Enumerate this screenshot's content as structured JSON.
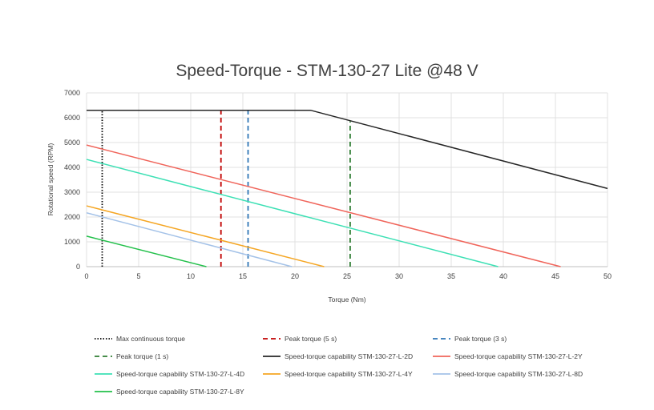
{
  "chart_data": {
    "type": "line",
    "title": "Speed-Torque - STM-130-27 Lite @48 V",
    "xlabel": "Torque (Nm)",
    "ylabel": "Rotational speed (RPM)",
    "xlim": [
      0,
      50
    ],
    "ylim": [
      0,
      7000
    ],
    "xticks": [
      0,
      5,
      10,
      15,
      20,
      25,
      30,
      35,
      40,
      45,
      50
    ],
    "yticks": [
      0,
      1000,
      2000,
      3000,
      4000,
      5000,
      6000,
      7000
    ],
    "grid": true,
    "legend_position": "bottom",
    "series": [
      {
        "name": "Max continuous torque",
        "kind": "vertical",
        "dash": "dotted",
        "color": "#000000",
        "x": [
          1.5,
          1.5
        ],
        "y": [
          0,
          6300
        ]
      },
      {
        "name": "Peak torque (5 s)",
        "kind": "vertical",
        "dash": "dashed",
        "color": "#c00000",
        "x": [
          12.9,
          12.9
        ],
        "y": [
          0,
          6300
        ]
      },
      {
        "name": "Peak torque (3 s)",
        "kind": "vertical",
        "dash": "dashed",
        "color": "#2e75b6",
        "x": [
          15.5,
          15.5
        ],
        "y": [
          0,
          6300
        ]
      },
      {
        "name": "Peak torque (1 s)",
        "kind": "vertical",
        "dash": "dashed",
        "color": "#2e7d32",
        "x": [
          25.3,
          25.3
        ],
        "y": [
          0,
          5850
        ]
      },
      {
        "name": "Speed-torque capability STM-130-27-L-2D",
        "kind": "line",
        "dash": "solid",
        "color": "#262626",
        "x": [
          0,
          21.5,
          50
        ],
        "y": [
          6300,
          6300,
          3150
        ]
      },
      {
        "name": "Speed-torque capability STM-130-27-L-2Y",
        "kind": "line",
        "dash": "solid",
        "color": "#f0645a",
        "x": [
          0,
          45.5
        ],
        "y": [
          4900,
          0
        ]
      },
      {
        "name": "Speed-torque capability STM-130-27-L-4D",
        "kind": "line",
        "dash": "solid",
        "color": "#3ce0b4",
        "x": [
          0,
          39.5
        ],
        "y": [
          4320,
          0
        ]
      },
      {
        "name": "Speed-torque capability STM-130-27-L-4Y",
        "kind": "line",
        "dash": "solid",
        "color": "#f5a623",
        "x": [
          0,
          22.8
        ],
        "y": [
          2450,
          0
        ]
      },
      {
        "name": "Speed-torque capability STM-130-27-L-8D",
        "kind": "line",
        "dash": "solid",
        "color": "#a4c2e8",
        "x": [
          0,
          19.7
        ],
        "y": [
          2170,
          0
        ]
      },
      {
        "name": "Speed-torque capability STM-130-27-L-8Y",
        "kind": "line",
        "dash": "solid",
        "color": "#22c04a",
        "x": [
          0,
          11.5
        ],
        "y": [
          1230,
          0
        ]
      }
    ]
  }
}
